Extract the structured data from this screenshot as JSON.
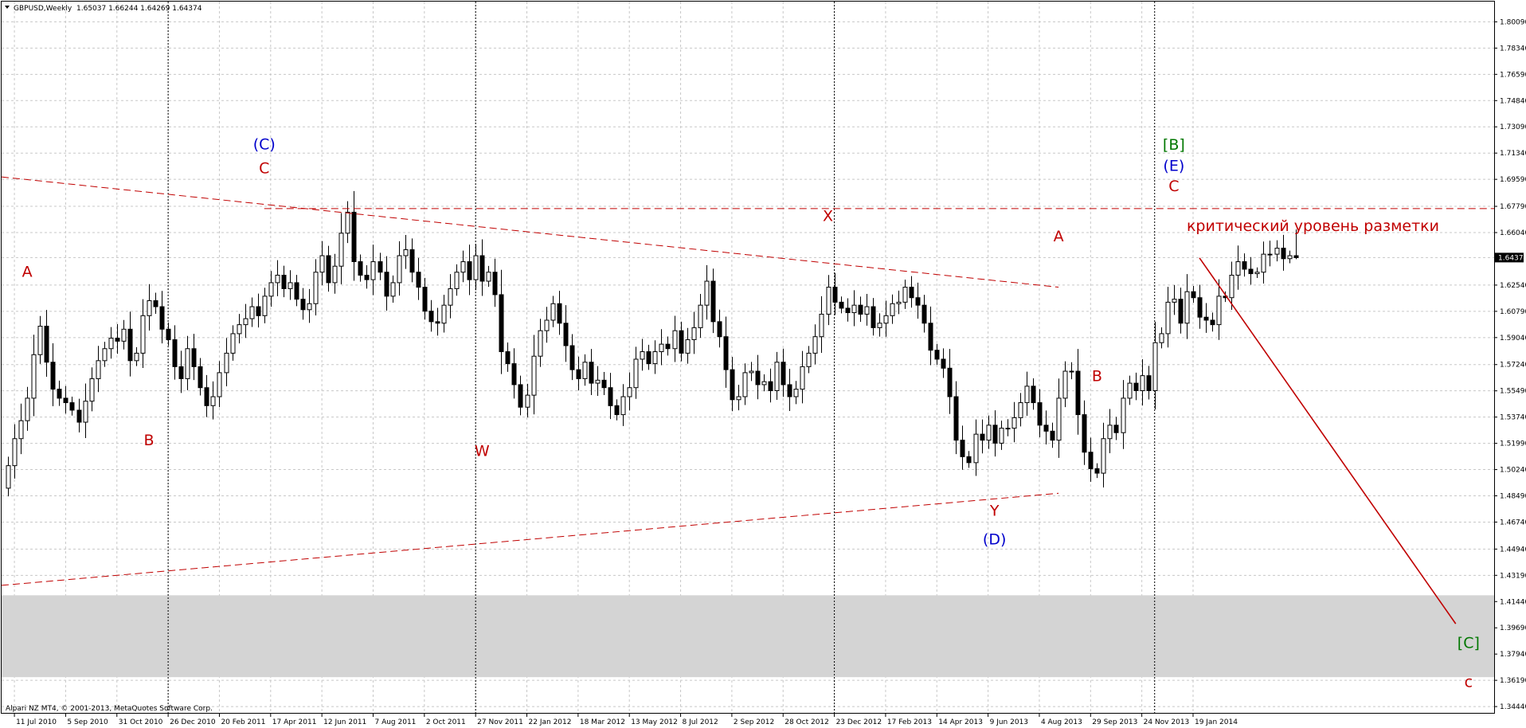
{
  "header": {
    "symbol": "GBPUSD,Weekly",
    "ohlc": "1.65037 1.66244 1.64269 1.64374"
  },
  "footer": {
    "copyright": "Alpari NZ MT4, © 2001-2013, MetaQuotes Software Corp."
  },
  "colors": {
    "background": "#ffffff",
    "grid": "#c8c8c8",
    "frame": "#000000",
    "candle": "#000000",
    "markup_red": "#c00000",
    "markup_blue": "#0000cc",
    "markup_green": "#007700",
    "zone": "#d4d4d4"
  },
  "chart_data": {
    "type": "candlestick",
    "instrument": "GBPUSD",
    "timeframe": "Weekly",
    "last_bar": {
      "open": 1.65037,
      "high": 1.66244,
      "low": 1.64269,
      "close": 1.64374
    },
    "current_price_label": "1.64374",
    "ylim": [
      1.3402,
      1.8144
    ],
    "y_ticks": [
      "1.80090",
      "1.78340",
      "1.76590",
      "1.74840",
      "1.73090",
      "1.71340",
      "1.69590",
      "1.67790",
      "1.66040",
      "1.64374",
      "1.62540",
      "1.60790",
      "1.59040",
      "1.57240",
      "1.55490",
      "1.53740",
      "1.51990",
      "1.50240",
      "1.48490",
      "1.46740",
      "1.44940",
      "1.43190",
      "1.41440",
      "1.39690",
      "1.37940",
      "1.36190",
      "1.34440"
    ],
    "x_ticks": [
      "11 Jul 2010",
      "5 Sep 2010",
      "31 Oct 2010",
      "26 Dec 2010",
      "20 Feb 2011",
      "17 Apr 2011",
      "12 Jun 2011",
      "7 Aug 2011",
      "2 Oct 2011",
      "27 Nov 2011",
      "22 Jan 2012",
      "18 Mar 2012",
      "13 May 2012",
      "8 Jul 2012",
      "2 Sep 2012",
      "28 Oct 2012",
      "23 Dec 2012",
      "17 Feb 2013",
      "14 Apr 2013",
      "9 Jun 2013",
      "4 Aug 2013",
      "29 Sep 2013",
      "24 Nov 2013",
      "19 Jan 2014"
    ],
    "x_range": [
      "2010-06-27",
      "2014-12-14"
    ],
    "separators": [
      "2010-12-26",
      "2011-11-27",
      "2012-12-23",
      "2013-12-08"
    ],
    "closes": [
      1.505,
      1.523,
      1.535,
      1.55,
      1.579,
      1.598,
      1.574,
      1.556,
      1.55,
      1.547,
      1.542,
      1.534,
      1.548,
      1.563,
      1.575,
      1.583,
      1.59,
      1.588,
      1.596,
      1.575,
      1.58,
      1.605,
      1.615,
      1.611,
      1.596,
      1.589,
      1.571,
      1.563,
      1.583,
      1.571,
      1.557,
      1.545,
      1.551,
      1.567,
      1.58,
      1.593,
      1.599,
      1.603,
      1.611,
      1.605,
      1.618,
      1.627,
      1.632,
      1.623,
      1.627,
      1.616,
      1.609,
      1.613,
      1.634,
      1.645,
      1.627,
      1.638,
      1.66,
      1.674,
      1.641,
      1.632,
      1.629,
      1.641,
      1.634,
      1.618,
      1.627,
      1.645,
      1.649,
      1.634,
      1.624,
      1.608,
      1.601,
      1.6,
      1.612,
      1.623,
      1.634,
      1.641,
      1.629,
      1.645,
      1.628,
      1.634,
      1.619,
      1.581,
      1.573,
      1.559,
      1.544,
      1.552,
      1.578,
      1.595,
      1.602,
      1.613,
      1.6,
      1.585,
      1.569,
      1.563,
      1.574,
      1.56,
      1.562,
      1.557,
      1.545,
      1.539,
      1.551,
      1.557,
      1.576,
      1.581,
      1.573,
      1.581,
      1.586,
      1.583,
      1.595,
      1.58,
      1.589,
      1.597,
      1.612,
      1.628,
      1.601,
      1.591,
      1.569,
      1.549,
      1.551,
      1.567,
      1.568,
      1.559,
      1.561,
      1.555,
      1.574,
      1.559,
      1.551,
      1.556,
      1.571,
      1.58,
      1.591,
      1.606,
      1.624,
      1.614,
      1.61,
      1.607,
      1.612,
      1.606,
      1.611,
      1.597,
      1.6,
      1.605,
      1.613,
      1.614,
      1.624,
      1.617,
      1.612,
      1.6,
      1.582,
      1.576,
      1.57,
      1.551,
      1.522,
      1.511,
      1.507,
      1.526,
      1.522,
      1.532,
      1.52,
      1.53,
      1.53,
      1.537,
      1.547,
      1.558,
      1.547,
      1.532,
      1.528,
      1.522,
      1.55,
      1.568,
      1.568,
      1.539,
      1.514,
      1.503,
      1.5,
      1.523,
      1.532,
      1.527,
      1.55,
      1.56,
      1.555,
      1.565,
      1.555,
      1.587,
      1.593,
      1.614,
      1.616,
      1.6,
      1.621,
      1.617,
      1.604,
      1.602,
      1.599,
      1.618,
      1.617,
      1.632,
      1.641,
      1.636,
      1.633,
      1.634,
      1.646,
      1.646,
      1.65,
      1.643,
      1.645,
      1.6437
    ],
    "wave_labels": [
      {
        "text": "A",
        "date": "2010-07-25",
        "price": 1.631,
        "color": "red"
      },
      {
        "text": "B",
        "date": "2010-12-05",
        "price": 1.5185,
        "color": "red"
      },
      {
        "text": "(C)",
        "date": "2011-04-10",
        "price": 1.716,
        "color": "blue"
      },
      {
        "text": "C",
        "date": "2011-04-10",
        "price": 1.7,
        "color": "red"
      },
      {
        "text": "W",
        "date": "2011-12-04",
        "price": 1.5115,
        "color": "red"
      },
      {
        "text": "X",
        "date": "2012-12-16",
        "price": 1.668,
        "color": "red"
      },
      {
        "text": "Y",
        "date": "2013-06-16",
        "price": 1.4715,
        "color": "red"
      },
      {
        "text": "(D)",
        "date": "2013-06-16",
        "price": 1.4525,
        "color": "blue"
      },
      {
        "text": "A",
        "date": "2013-08-25",
        "price": 1.6545,
        "color": "red"
      },
      {
        "text": "B",
        "date": "2013-10-06",
        "price": 1.5615,
        "color": "red"
      },
      {
        "text": "[B]",
        "date": "2013-12-29",
        "price": 1.7155,
        "color": "green"
      },
      {
        "text": "(E)",
        "date": "2013-12-29",
        "price": 1.7015,
        "color": "blue"
      },
      {
        "text": "C",
        "date": "2013-12-29",
        "price": 1.688,
        "color": "red"
      },
      {
        "text": "[C]",
        "date": "2014-11-16",
        "price": 1.3835,
        "color": "green"
      },
      {
        "text": "c",
        "date": "2014-11-16",
        "price": 1.3575,
        "color": "red"
      }
    ],
    "annotation": {
      "text": "критический уровень разметки",
      "date": "2014-01-12",
      "price": 1.6615
    },
    "lines": [
      {
        "name": "upper-trendline",
        "style": "dashed",
        "from": {
          "date": "2010-06-27",
          "price": 1.6975
        },
        "to": {
          "date": "2013-08-25",
          "price": 1.624
        }
      },
      {
        "name": "lower-trendline",
        "style": "dashed",
        "from": {
          "date": "2010-06-27",
          "price": 1.4252
        },
        "to": {
          "date": "2013-08-25",
          "price": 1.4866
        }
      },
      {
        "name": "critical-level",
        "style": "dashed",
        "from": {
          "date": "2011-04-10",
          "price": 1.6764
        },
        "to": {
          "date": "2014-12-14",
          "price": 1.6764
        }
      },
      {
        "name": "forecast-line",
        "style": "solid",
        "from": {
          "date": "2014-01-26",
          "price": 1.6435
        },
        "to": {
          "date": "2014-11-02",
          "price": 1.3996
        }
      }
    ],
    "zone": {
      "from": 1.364,
      "to": 1.4186
    },
    "grid": true
  }
}
